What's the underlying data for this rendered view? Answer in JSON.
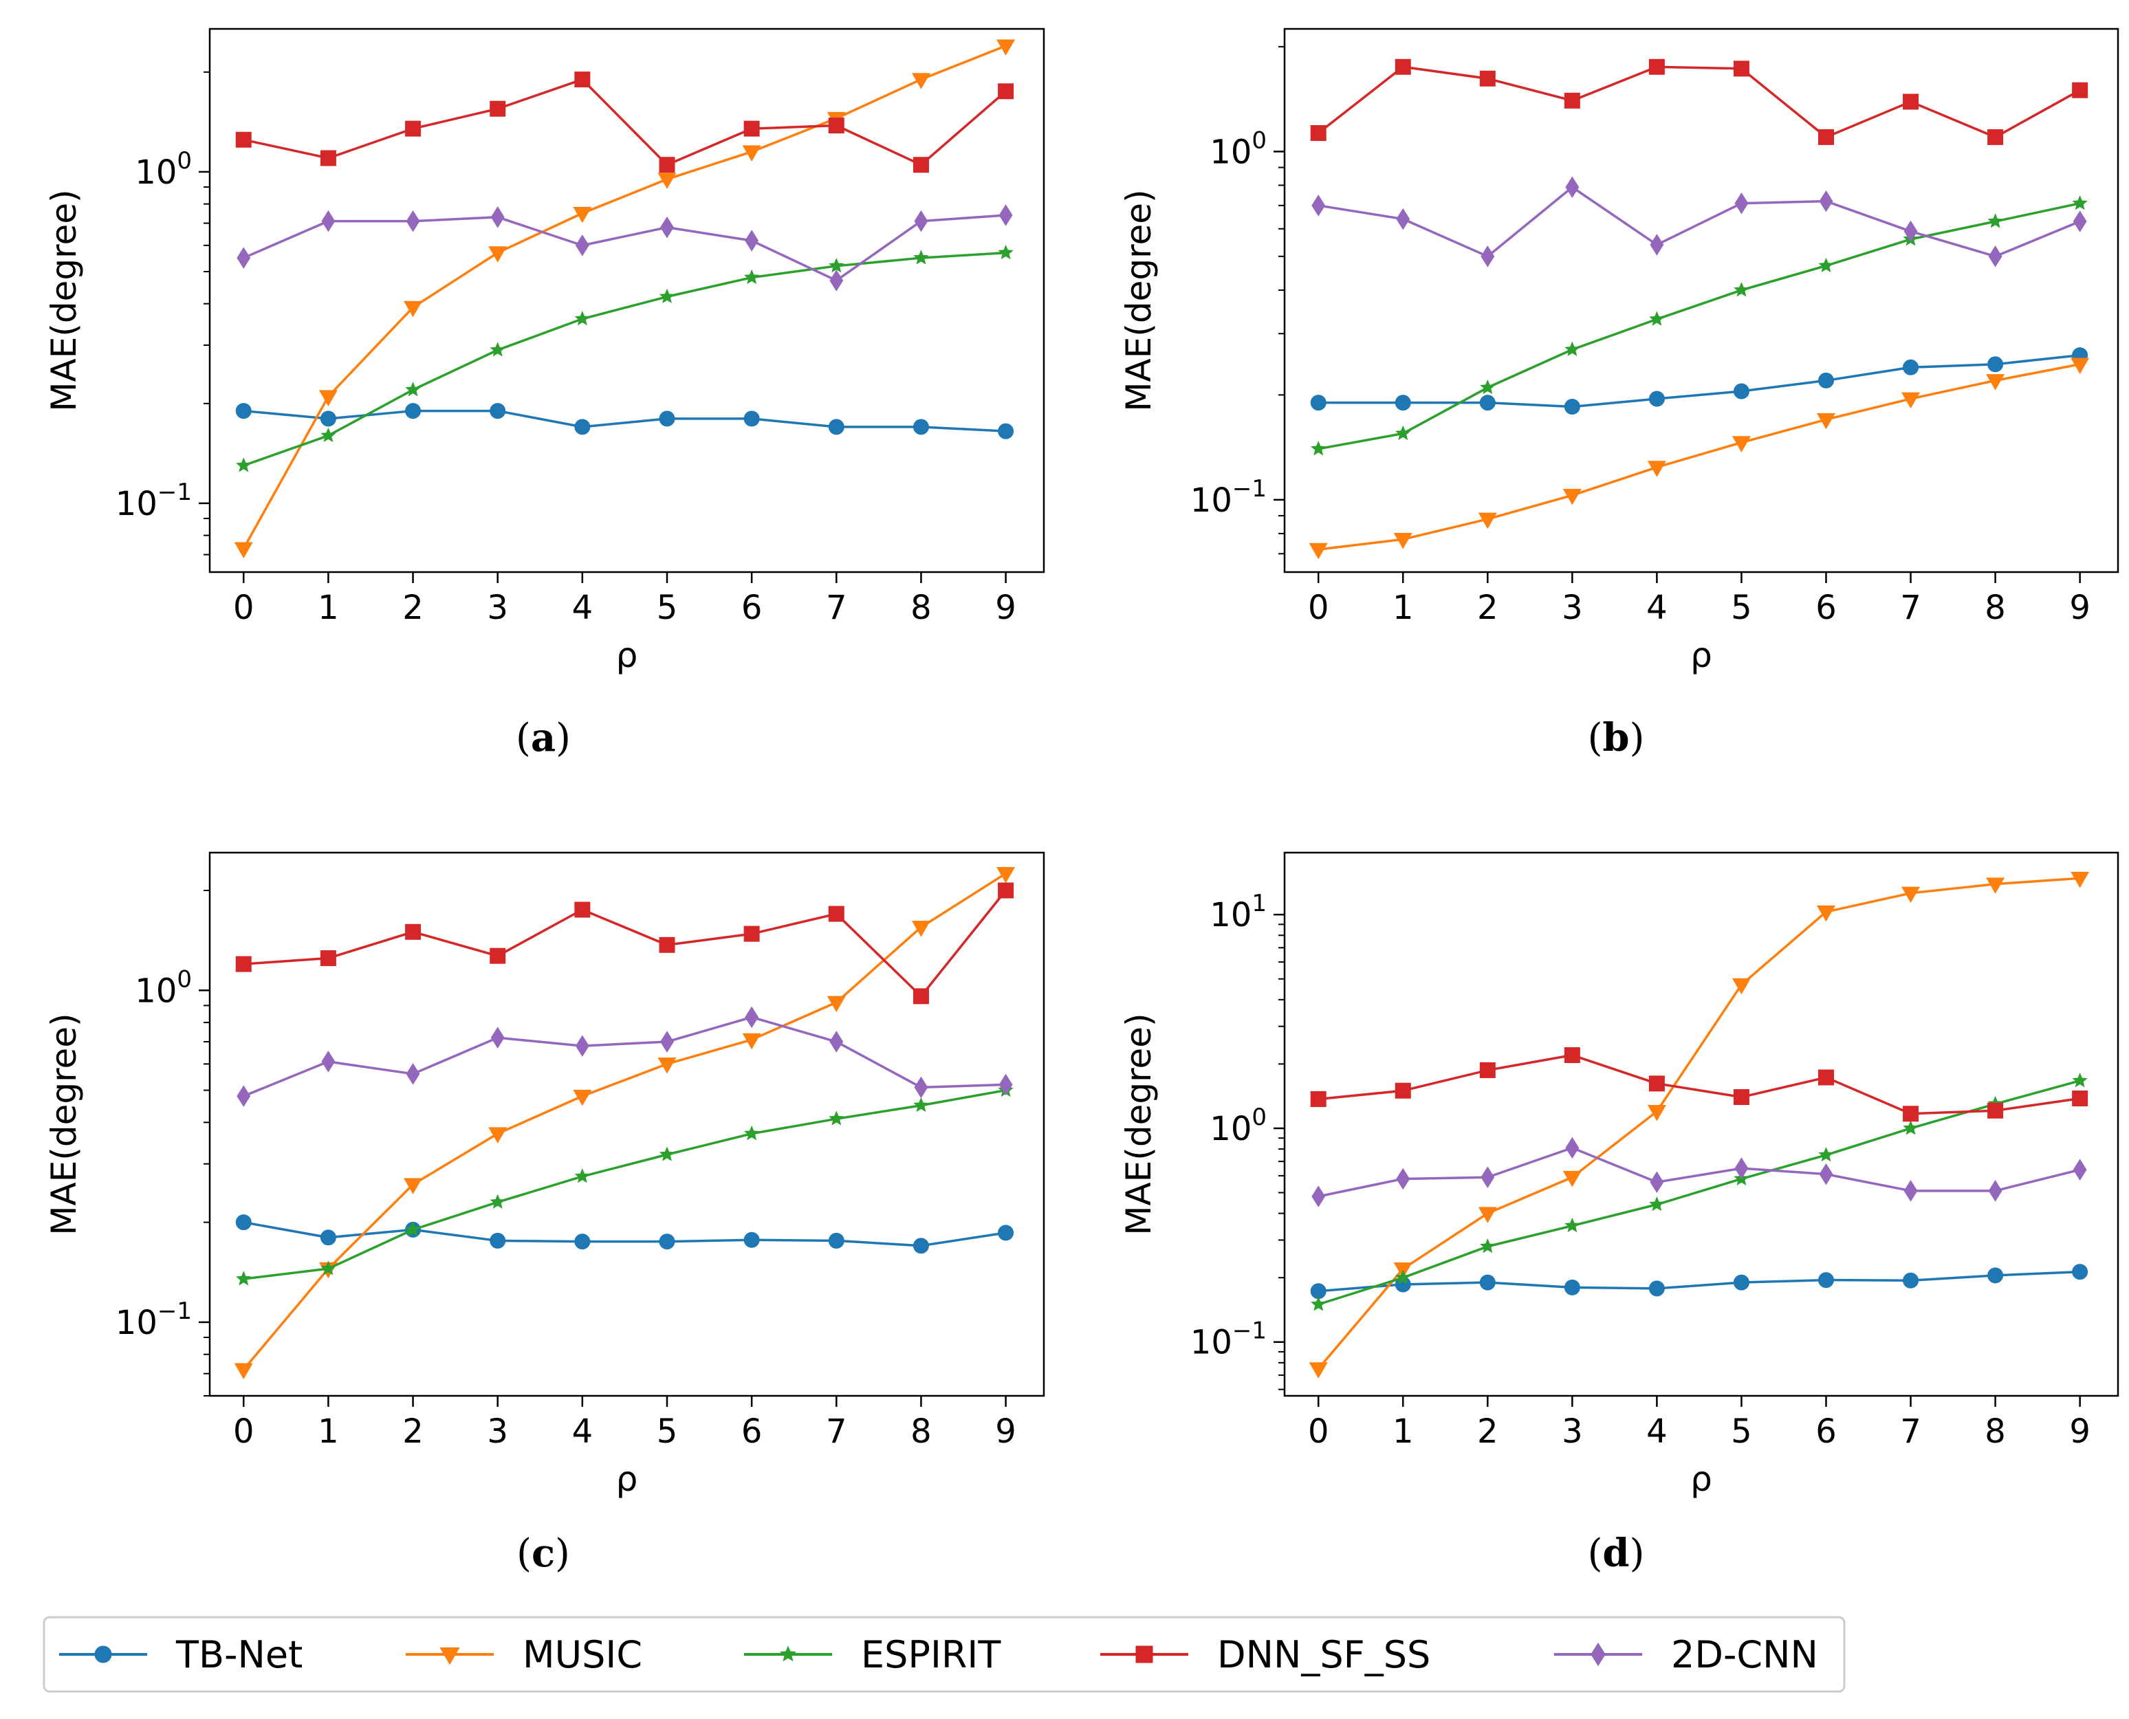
{
  "chart_data": [
    {
      "id": "a",
      "type": "line",
      "caption_label": "a",
      "xlabel": "ρ",
      "ylabel": "MAE(degree)",
      "yscale": "log",
      "ylim": [
        0.062,
        2.7
      ],
      "xlim": [
        -0.4,
        9.45
      ],
      "x": [
        0,
        1,
        2,
        3,
        4,
        5,
        6,
        7,
        8,
        9
      ],
      "xticks": [
        "0",
        "1",
        "2",
        "3",
        "4",
        "5",
        "6",
        "7",
        "8",
        "9"
      ],
      "yticks": [
        {
          "value": 1.0,
          "base": "10",
          "exp": "0"
        },
        {
          "value": 0.1,
          "base": "10",
          "exp": "−1"
        }
      ],
      "series": [
        {
          "name": "TB-Net",
          "values": [
            0.19,
            0.18,
            0.19,
            0.19,
            0.17,
            0.18,
            0.18,
            0.17,
            0.17,
            0.165
          ]
        },
        {
          "name": "MUSIC",
          "values": [
            0.073,
            0.21,
            0.39,
            0.57,
            0.75,
            0.95,
            1.15,
            1.45,
            1.9,
            2.4
          ]
        },
        {
          "name": "ESPIRIT",
          "values": [
            0.13,
            0.16,
            0.22,
            0.29,
            0.36,
            0.42,
            0.48,
            0.52,
            0.55,
            0.57
          ]
        },
        {
          "name": "DNN_SF_SS",
          "values": [
            1.25,
            1.1,
            1.35,
            1.55,
            1.9,
            1.05,
            1.35,
            1.38,
            1.05,
            1.75
          ]
        },
        {
          "name": "2D-CNN",
          "values": [
            0.55,
            0.71,
            0.71,
            0.73,
            0.6,
            0.68,
            0.62,
            0.47,
            0.71,
            0.74
          ]
        }
      ]
    },
    {
      "id": "b",
      "type": "line",
      "caption_label": "b",
      "xlabel": "ρ",
      "ylabel": "MAE(degree)",
      "yscale": "log",
      "ylim": [
        0.062,
        2.25
      ],
      "xlim": [
        -0.4,
        9.45
      ],
      "x": [
        0,
        1,
        2,
        3,
        4,
        5,
        6,
        7,
        8,
        9
      ],
      "xticks": [
        "0",
        "1",
        "2",
        "3",
        "4",
        "5",
        "6",
        "7",
        "8",
        "9"
      ],
      "yticks": [
        {
          "value": 1.0,
          "base": "10",
          "exp": "0"
        },
        {
          "value": 0.1,
          "base": "10",
          "exp": "−1"
        }
      ],
      "series": [
        {
          "name": "TB-Net",
          "values": [
            0.19,
            0.19,
            0.19,
            0.185,
            0.195,
            0.205,
            0.22,
            0.24,
            0.245,
            0.26
          ]
        },
        {
          "name": "MUSIC",
          "values": [
            0.072,
            0.077,
            0.088,
            0.103,
            0.124,
            0.146,
            0.17,
            0.195,
            0.22,
            0.245
          ]
        },
        {
          "name": "ESPIRIT",
          "values": [
            0.14,
            0.155,
            0.21,
            0.27,
            0.33,
            0.4,
            0.47,
            0.56,
            0.63,
            0.71
          ]
        },
        {
          "name": "DNN_SF_SS",
          "values": [
            1.13,
            1.75,
            1.62,
            1.4,
            1.75,
            1.73,
            1.1,
            1.39,
            1.1,
            1.5
          ]
        },
        {
          "name": "2D-CNN",
          "values": [
            0.7,
            0.64,
            0.5,
            0.79,
            0.54,
            0.71,
            0.72,
            0.59,
            0.5,
            0.63
          ]
        }
      ]
    },
    {
      "id": "c",
      "type": "line",
      "caption_label": "c",
      "xlabel": "ρ",
      "ylabel": "MAE(degree)",
      "yscale": "log",
      "ylim": [
        0.06,
        2.6
      ],
      "xlim": [
        -0.4,
        9.45
      ],
      "x": [
        0,
        1,
        2,
        3,
        4,
        5,
        6,
        7,
        8,
        9
      ],
      "xticks": [
        "0",
        "1",
        "2",
        "3",
        "4",
        "5",
        "6",
        "7",
        "8",
        "9"
      ],
      "yticks": [
        {
          "value": 1.0,
          "base": "10",
          "exp": "0"
        },
        {
          "value": 0.1,
          "base": "10",
          "exp": "−1"
        }
      ],
      "series": [
        {
          "name": "TB-Net",
          "values": [
            0.2,
            0.18,
            0.19,
            0.176,
            0.175,
            0.175,
            0.177,
            0.176,
            0.17,
            0.186
          ]
        },
        {
          "name": "MUSIC",
          "values": [
            0.072,
            0.145,
            0.26,
            0.37,
            0.48,
            0.6,
            0.71,
            0.92,
            1.55,
            2.25
          ]
        },
        {
          "name": "ESPIRIT",
          "values": [
            0.135,
            0.145,
            0.19,
            0.23,
            0.275,
            0.32,
            0.37,
            0.41,
            0.45,
            0.5
          ]
        },
        {
          "name": "DNN_SF_SS",
          "values": [
            1.2,
            1.25,
            1.5,
            1.27,
            1.75,
            1.37,
            1.48,
            1.7,
            0.96,
            2.0
          ]
        },
        {
          "name": "2D-CNN",
          "values": [
            0.48,
            0.61,
            0.56,
            0.72,
            0.68,
            0.7,
            0.83,
            0.7,
            0.51,
            0.52
          ]
        }
      ]
    },
    {
      "id": "d",
      "type": "line",
      "caption_label": "d",
      "xlabel": "ρ",
      "ylabel": "MAE(degree)",
      "yscale": "log",
      "ylim": [
        0.056,
        19.5
      ],
      "xlim": [
        -0.4,
        9.45
      ],
      "x": [
        0,
        1,
        2,
        3,
        4,
        5,
        6,
        7,
        8,
        9
      ],
      "xticks": [
        "0",
        "1",
        "2",
        "3",
        "4",
        "5",
        "6",
        "7",
        "8",
        "9"
      ],
      "yticks": [
        {
          "value": 10,
          "base": "10",
          "exp": "1"
        },
        {
          "value": 1.0,
          "base": "10",
          "exp": "0"
        },
        {
          "value": 0.1,
          "base": "10",
          "exp": "−1"
        }
      ],
      "series": [
        {
          "name": "TB-Net",
          "values": [
            0.173,
            0.186,
            0.19,
            0.18,
            0.178,
            0.19,
            0.195,
            0.194,
            0.205,
            0.213
          ]
        },
        {
          "name": "MUSIC",
          "values": [
            0.075,
            0.22,
            0.4,
            0.59,
            1.2,
            4.7,
            10.3,
            12.6,
            13.9,
            14.8
          ]
        },
        {
          "name": "ESPIRIT",
          "values": [
            0.15,
            0.2,
            0.28,
            0.35,
            0.44,
            0.58,
            0.75,
            1.0,
            1.3,
            1.67
          ]
        },
        {
          "name": "DNN_SF_SS",
          "values": [
            1.37,
            1.5,
            1.87,
            2.2,
            1.62,
            1.4,
            1.73,
            1.17,
            1.21,
            1.38
          ]
        },
        {
          "name": "2D-CNN",
          "values": [
            0.48,
            0.58,
            0.59,
            0.81,
            0.56,
            0.65,
            0.61,
            0.51,
            0.51,
            0.64
          ]
        }
      ]
    }
  ],
  "legend": {
    "position": "bottom-center",
    "items": [
      {
        "name": "TB-Net",
        "color": "#1f77b4",
        "marker": "circle"
      },
      {
        "name": "MUSIC",
        "color": "#ff7f0e",
        "marker": "triangle-down"
      },
      {
        "name": "ESPIRIT",
        "color": "#2ca02c",
        "marker": "star"
      },
      {
        "name": "DNN_SF_SS",
        "color": "#d62728",
        "marker": "square"
      },
      {
        "name": "2D-CNN",
        "color": "#9467bd",
        "marker": "diamond"
      }
    ]
  }
}
